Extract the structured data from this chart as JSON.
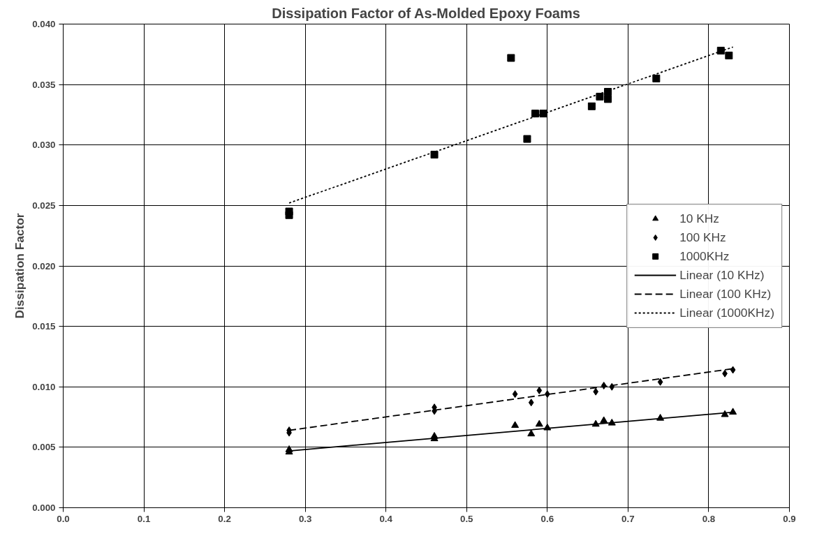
{
  "chart_data": {
    "type": "scatter",
    "title": "Dissipation Factor of As-Molded Epoxy Foams",
    "ylabel": "Dissipation Factor",
    "xlim": [
      0.0,
      0.9
    ],
    "xticks": [
      {
        "value": 0.0,
        "label": "0.0"
      },
      0.1,
      0.2,
      0.3,
      0.4,
      0.5,
      0.6,
      0.7,
      0.8,
      0.9
    ],
    "ylim": [
      0.0,
      0.04
    ],
    "yticks": [
      {
        "value": 0.0,
        "label": "0.000"
      },
      {
        "value": 0.005,
        "label": "0.005"
      },
      {
        "value": 0.01,
        "label": "0.010"
      },
      {
        "value": 0.015,
        "label": "0.015"
      },
      {
        "value": 0.02,
        "label": "0.020"
      },
      {
        "value": 0.025,
        "label": "0.025"
      },
      {
        "value": 0.03,
        "label": "0.030"
      },
      {
        "value": 0.035,
        "label": "0.035"
      },
      {
        "value": 0.04,
        "label": "0.040"
      }
    ],
    "grid": true,
    "legend": "right",
    "series": [
      {
        "name": "10 KHz",
        "marker": "triangle",
        "color": "#000000",
        "x": [
          0.28,
          0.28,
          0.46,
          0.46,
          0.56,
          0.58,
          0.59,
          0.6,
          0.66,
          0.67,
          0.68,
          0.74,
          0.82,
          0.83
        ],
        "values": [
          0.0046,
          0.0048,
          0.0057,
          0.0059,
          0.0068,
          0.0061,
          0.0069,
          0.0066,
          0.0069,
          0.0072,
          0.007,
          0.0074,
          0.0077,
          0.0079
        ]
      },
      {
        "name": "100 KHz",
        "marker": "diamond",
        "color": "#000000",
        "x": [
          0.28,
          0.28,
          0.46,
          0.46,
          0.56,
          0.58,
          0.59,
          0.6,
          0.66,
          0.67,
          0.68,
          0.74,
          0.82,
          0.83
        ],
        "values": [
          0.0062,
          0.0064,
          0.008,
          0.0083,
          0.0094,
          0.0087,
          0.0097,
          0.0094,
          0.0096,
          0.0101,
          0.01,
          0.0104,
          0.0111,
          0.0114
        ]
      },
      {
        "name": "1000KHz",
        "marker": "square",
        "color": "#000000",
        "x": [
          0.28,
          0.28,
          0.46,
          0.555,
          0.575,
          0.585,
          0.595,
          0.655,
          0.665,
          0.675,
          0.675,
          0.735,
          0.815,
          0.825
        ],
        "values": [
          0.0242,
          0.0245,
          0.0292,
          0.0372,
          0.0305,
          0.0326,
          0.0326,
          0.0332,
          0.034,
          0.0338,
          0.0344,
          0.0355,
          0.0378,
          0.0374
        ]
      },
      {
        "name": "Linear (10 KHz)",
        "type": "line",
        "line_style": "solid",
        "color": "#000000",
        "x": [
          0.28,
          0.83
        ],
        "values": [
          0.0047,
          0.0079
        ]
      },
      {
        "name": "Linear (100 KHz)",
        "type": "line",
        "line_style": "dashed",
        "color": "#000000",
        "x": [
          0.28,
          0.83
        ],
        "values": [
          0.0064,
          0.0115
        ]
      },
      {
        "name": "Linear (1000KHz)",
        "type": "line",
        "line_style": "dotted",
        "color": "#000000",
        "x": [
          0.28,
          0.83
        ],
        "values": [
          0.0252,
          0.0381
        ]
      }
    ]
  }
}
